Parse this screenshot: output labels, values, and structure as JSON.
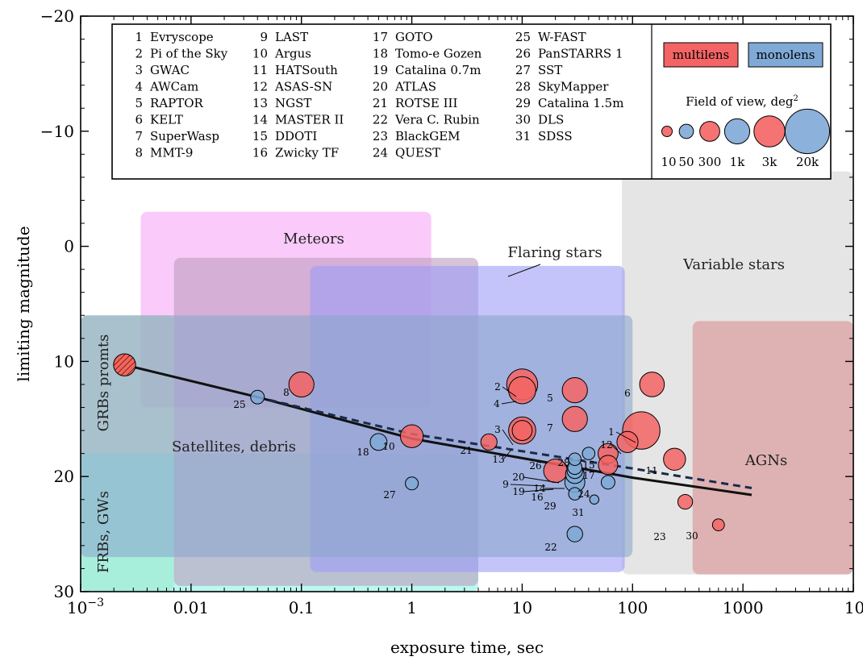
{
  "chart_data": {
    "type": "scatter",
    "xlabel": "exposure time, sec",
    "ylabel": "limiting magnitude",
    "x_scale": "log",
    "xlim": [
      0.001,
      10000
    ],
    "ylim": [
      30,
      -20
    ],
    "x_ticks": [
      {
        "value": 0.001,
        "label": "10",
        "sup": "−3"
      },
      {
        "value": 0.01,
        "label": "0.01"
      },
      {
        "value": 0.1,
        "label": "0.1"
      },
      {
        "value": 1,
        "label": "1"
      },
      {
        "value": 10,
        "label": "10"
      },
      {
        "value": 100,
        "label": "100"
      },
      {
        "value": 1000,
        "label": "1000"
      },
      {
        "value": 10000,
        "label": "10",
        "sup": "4"
      }
    ],
    "y_ticks": [
      {
        "value": -20,
        "label": "−20"
      },
      {
        "value": -10,
        "label": "−10"
      },
      {
        "value": 0,
        "label": "0"
      },
      {
        "value": 10,
        "label": "10"
      },
      {
        "value": 20,
        "label": "20"
      },
      {
        "value": 30,
        "label": "30"
      }
    ],
    "legend_instruments": [
      "1 Evryscope",
      "2 Pi of the Sky",
      "3 GWAC",
      "4 AWCam",
      "5 RAPTOR",
      "6 KELT",
      "7 SuperWasp",
      "8 MMT-9",
      "9 LAST",
      "10 Argus",
      "11 HATSouth",
      "12 ASAS-SN",
      "13 NGST",
      "14 MASTER II",
      "15 DDOTI",
      "16 Zwicky TF",
      "17 GOTO",
      "18 Tomo-e Gozen",
      "19 Catalina 0.7m",
      "20 ATLAS",
      "21 ROTSE III",
      "22 Vera C. Rubin",
      "23 BlackGEM",
      "24 QUEST",
      "25 W-FAST",
      "26 PanSTARRS 1",
      "27 SST",
      "28 SkyMapper",
      "29 Catalina 1.5m",
      "30 DLS",
      "31 SDSS"
    ],
    "legend_types": {
      "multilens": "multilens",
      "monolens": "monolens",
      "multilens_color": "#f46464",
      "monolens_color": "#7fa9d6"
    },
    "fov_legend": {
      "title": "Field of view, deg",
      "title_sup": "2",
      "sizes": [
        {
          "label": "10",
          "fov": 10,
          "type": "multilens"
        },
        {
          "label": "50",
          "fov": 50,
          "type": "monolens"
        },
        {
          "label": "300",
          "fov": 300,
          "type": "multilens"
        },
        {
          "label": "1k",
          "fov": 1000,
          "type": "monolens"
        },
        {
          "label": "3k",
          "fov": 3000,
          "type": "multilens"
        },
        {
          "label": "20k",
          "fov": 20000,
          "type": "monolens"
        }
      ]
    },
    "regions": [
      {
        "label": "Variable stars",
        "x": [
          80,
          10000
        ],
        "y": [
          -6.5,
          28.5
        ],
        "color": "#d4d4d4"
      },
      {
        "label": "AGNs",
        "x": [
          350,
          10000
        ],
        "y": [
          6.5,
          28.5
        ],
        "color": "#d98f8f"
      },
      {
        "label": "Meteors",
        "x": [
          0.0035,
          1.5
        ],
        "y": [
          -3,
          14
        ],
        "color": "#f6a6f6"
      },
      {
        "label": "GRBs promts",
        "x": [
          0.001,
          0.007
        ],
        "y": [
          6,
          30
        ],
        "color": "#b4d9aa"
      },
      {
        "label": "FRBs, GWs",
        "x": [
          0.001,
          4
        ],
        "y": [
          18,
          30
        ],
        "color": "#8cf4e4"
      },
      {
        "label": "Satellites, debris",
        "x": [
          0.007,
          4
        ],
        "y": [
          1,
          29.5
        ],
        "color": "#bd9cbd"
      },
      {
        "label": "Flaring stars",
        "x": [
          0.12,
          85
        ],
        "y": [
          1.7,
          28.3
        ],
        "color": "#9c9cf6"
      },
      {
        "label": "",
        "x": [
          0.001,
          100
        ],
        "y": [
          6,
          27
        ],
        "color": "#8ca6cc"
      }
    ],
    "series": [
      {
        "name": "multilens",
        "points": [
          {
            "id": "1",
            "x": 120,
            "y": 16,
            "fov": 8000
          },
          {
            "id": "2",
            "x": 10,
            "y": 12,
            "fov": 3000
          },
          {
            "id": "3",
            "x": 10,
            "y": 16,
            "fov": 1500
          },
          {
            "id": "4",
            "x": 10,
            "y": 12.5,
            "fov": 1500
          },
          {
            "id": "5",
            "x": 30,
            "y": 12.5,
            "fov": 1000
          },
          {
            "id": "6",
            "x": 150,
            "y": 12,
            "fov": 900
          },
          {
            "id": "7",
            "x": 30,
            "y": 15,
            "fov": 1000
          },
          {
            "id": "8",
            "x": 0.1,
            "y": 12,
            "fov": 1000
          },
          {
            "id": "9",
            "x": 20,
            "y": 19.5,
            "fov": 700
          },
          {
            "id": "10",
            "x": 1,
            "y": 16.5,
            "fov": 600
          },
          {
            "id": "11",
            "x": 240,
            "y": 18.5,
            "fov": 500
          },
          {
            "id": "12",
            "x": 90,
            "y": 17,
            "fov": 400
          },
          {
            "id": "13",
            "x": 10,
            "y": 16,
            "fov": 300
          },
          {
            "id": "15",
            "x": 60,
            "y": 18,
            "fov": 300
          },
          {
            "id": "17",
            "x": 60,
            "y": 19,
            "fov": 250
          },
          {
            "id": "21",
            "x": 5,
            "y": 17,
            "fov": 100
          },
          {
            "id": "23",
            "x": 300,
            "y": 22.2,
            "fov": 60
          },
          {
            "id": "30",
            "x": 600,
            "y": 24.2,
            "fov": 20
          },
          {
            "id": "GRB",
            "x": 0.0025,
            "y": 10.3,
            "fov": 500
          }
        ]
      },
      {
        "name": "monolens",
        "points": [
          {
            "id": "14",
            "x": 30,
            "y": 19.8,
            "fov": 200
          },
          {
            "id": "16",
            "x": 30,
            "y": 20.5,
            "fov": 300
          },
          {
            "id": "18",
            "x": 0.5,
            "y": 17,
            "fov": 120
          },
          {
            "id": "19",
            "x": 30,
            "y": 19.5,
            "fov": 80
          },
          {
            "id": "20",
            "x": 30,
            "y": 19.2,
            "fov": 50
          },
          {
            "id": "22",
            "x": 30,
            "y": 25,
            "fov": 80
          },
          {
            "id": "24",
            "x": 60,
            "y": 20.5,
            "fov": 40
          },
          {
            "id": "25",
            "x": 0.04,
            "y": 13.1,
            "fov": 40
          },
          {
            "id": "26",
            "x": 30,
            "y": 18.5,
            "fov": 25
          },
          {
            "id": "27",
            "x": 1,
            "y": 20.6,
            "fov": 30
          },
          {
            "id": "28",
            "x": 40,
            "y": 18,
            "fov": 25
          },
          {
            "id": "29",
            "x": 30,
            "y": 21.5,
            "fov": 25
          },
          {
            "id": "31",
            "x": 45,
            "y": 22,
            "fov": 5
          }
        ]
      }
    ],
    "label_positions_note": "",
    "lines": [
      {
        "style": "solid",
        "points": [
          [
            0.0025,
            10.3
          ],
          [
            0.04,
            13.1
          ],
          [
            1,
            16.7
          ],
          [
            10,
            18.4
          ],
          [
            100,
            20.1
          ],
          [
            1200,
            21.6
          ]
        ]
      },
      {
        "style": "dashed",
        "points": [
          [
            0.04,
            13.1
          ],
          [
            1,
            16.3
          ],
          [
            10,
            17.8
          ],
          [
            100,
            19.3
          ],
          [
            1200,
            21.0
          ]
        ]
      }
    ]
  }
}
